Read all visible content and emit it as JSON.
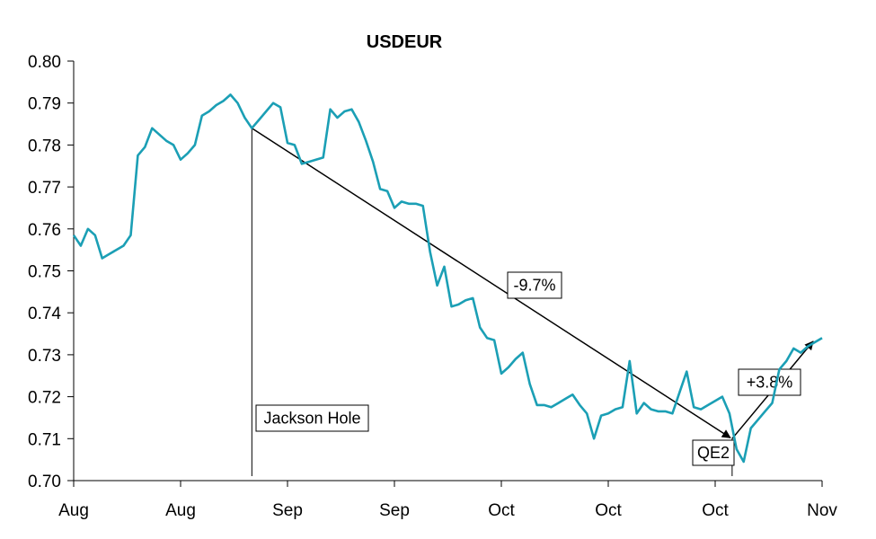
{
  "chart_data": {
    "type": "line",
    "title": "USDEUR",
    "xlabel": "",
    "ylabel": "",
    "ylim": [
      0.7,
      0.8
    ],
    "yticks": [
      "0.80",
      "0.79",
      "0.78",
      "0.77",
      "0.76",
      "0.75",
      "0.74",
      "0.73",
      "0.72",
      "0.71",
      "0.70"
    ],
    "xtick_labels": [
      "Aug",
      "Aug",
      "Sep",
      "Sep",
      "Oct",
      "Oct",
      "Oct",
      "Nov"
    ],
    "grid": false,
    "legend": "none",
    "series": [
      {
        "color": "#1b9fb5",
        "values": [
          0.7585,
          0.756,
          0.76,
          0.7585,
          0.753,
          0.754,
          0.755,
          0.756,
          0.7585,
          0.7775,
          0.7795,
          0.784,
          0.7825,
          0.781,
          0.78,
          0.7765,
          0.778,
          0.78,
          0.787,
          0.788,
          0.7895,
          0.7905,
          0.792,
          0.79,
          0.7865,
          0.784,
          0.786,
          0.788,
          0.79,
          0.789,
          0.7805,
          0.78,
          0.7755,
          0.776,
          0.7765,
          0.777,
          0.7885,
          0.7865,
          0.788,
          0.7885,
          0.7855,
          0.781,
          0.776,
          0.7695,
          0.769,
          0.765,
          0.7665,
          0.766,
          0.766,
          0.7655,
          0.7545,
          0.7465,
          0.751,
          0.7415,
          0.742,
          0.743,
          0.7435,
          0.7365,
          0.734,
          0.7335,
          0.7255,
          0.727,
          0.729,
          0.7305,
          0.723,
          0.718,
          0.718,
          0.7175,
          0.7185,
          0.7195,
          0.7205,
          0.718,
          0.716,
          0.71,
          0.7155,
          0.716,
          0.717,
          0.7175,
          0.7285,
          0.716,
          0.7185,
          0.717,
          0.7165,
          0.7165,
          0.716,
          0.721,
          0.726,
          0.7175,
          0.717,
          0.718,
          0.719,
          0.72,
          0.716,
          0.7075,
          0.7045,
          0.7125,
          0.7145,
          0.7165,
          0.7185,
          0.7265,
          0.7285,
          0.7315,
          0.7305,
          0.732,
          0.733,
          0.734
        ]
      }
    ],
    "annotations": [
      {
        "label": "Jackson Hole"
      },
      {
        "label": "-9.7%"
      },
      {
        "label": "QE2"
      },
      {
        "label": "+3.8%"
      }
    ]
  }
}
